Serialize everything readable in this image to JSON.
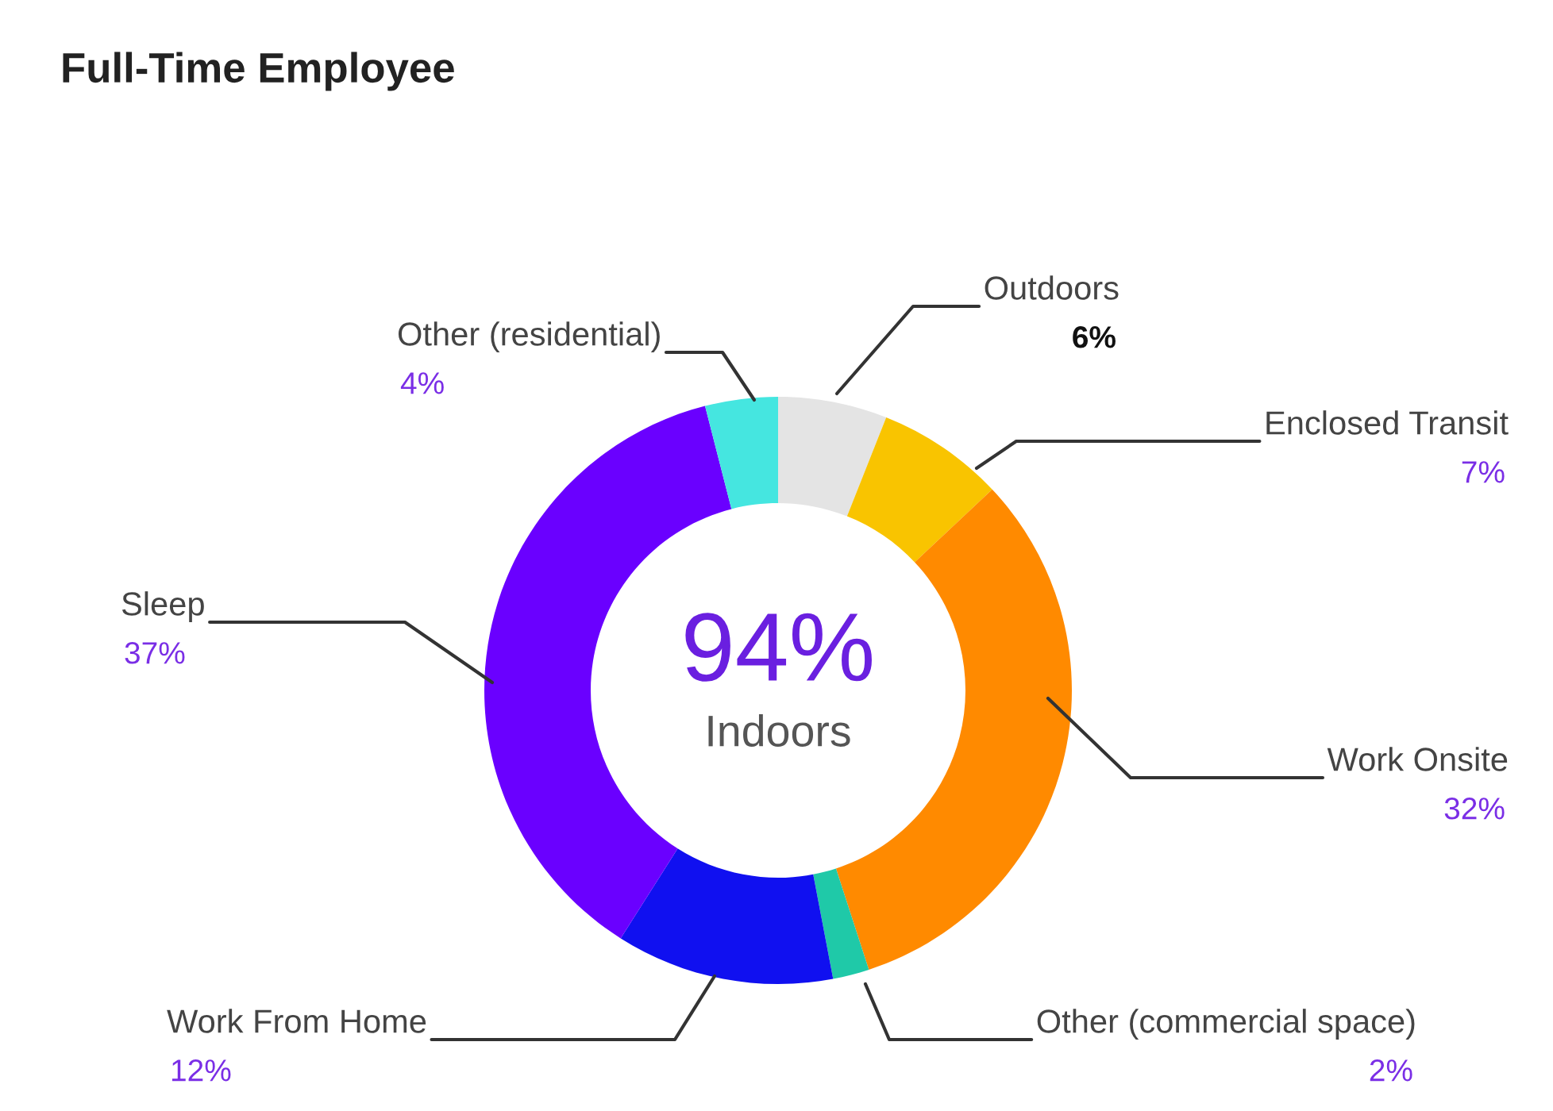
{
  "chart_data": {
    "type": "donut",
    "title": "Full-Time Employee",
    "categories": [
      "Outdoors",
      "Enclosed Transit",
      "Work Onsite",
      "Other (commercial space)",
      "Work From Home",
      "Sleep",
      "Other (residential)"
    ],
    "values": [
      6,
      7,
      32,
      2,
      12,
      37,
      4
    ],
    "value_labels": [
      "6%",
      "7%",
      "32%",
      "2%",
      "12%",
      "37%",
      "4%"
    ],
    "colors": [
      "#e4e4e4",
      "#f9c400",
      "#ff8a00",
      "#1fc9a8",
      "#1010f0",
      "#6a00ff",
      "#45e6e0"
    ],
    "annotations": [
      "94%",
      "Indoors"
    ]
  }
}
